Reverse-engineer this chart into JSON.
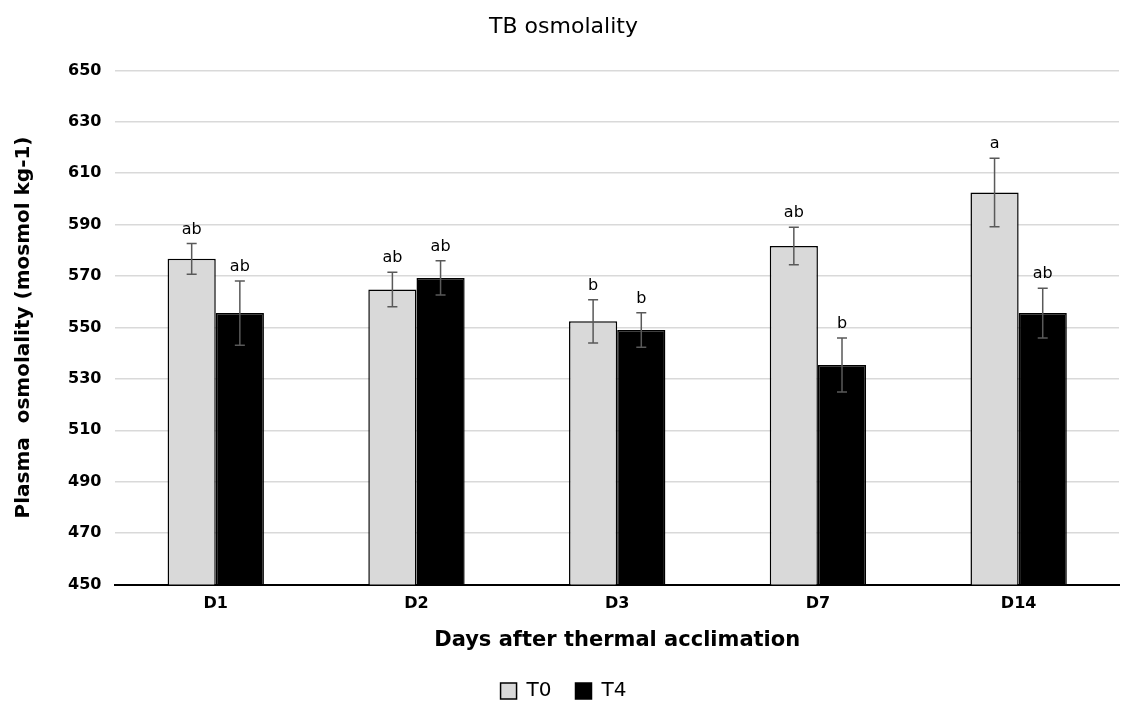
{
  "chart_data": {
    "type": "bar",
    "title": "TB osmolality",
    "xlabel": "Days after thermal acclimation",
    "ylabel": "Plasma  osmolality (mosmol kg-1)",
    "categories": [
      "D1",
      "D2",
      "D3",
      "D7",
      "D14"
    ],
    "series": [
      {
        "name": "T0",
        "color": "#d9d9d9",
        "values": [
          576.7,
          564.8,
          552.4,
          581.7,
          602.5
        ],
        "errors": [
          6,
          6.7,
          8.4,
          7.3,
          13.3
        ],
        "value_labels": [
          "ab",
          "ab",
          "b",
          "ab",
          "a"
        ]
      },
      {
        "name": "T4",
        "color": "#000000",
        "values": [
          555.6,
          569.3,
          549,
          535.4,
          555.6
        ],
        "errors": [
          12.5,
          6.7,
          6.7,
          10.5,
          9.7
        ],
        "value_labels": [
          "ab",
          "ab",
          "b",
          "b",
          "ab"
        ]
      }
    ],
    "ylim": [
      450,
      650
    ],
    "yticks": [
      450,
      470,
      490,
      510,
      530,
      550,
      570,
      590,
      610,
      630,
      650
    ],
    "grid": "y",
    "legend": "bottom"
  }
}
